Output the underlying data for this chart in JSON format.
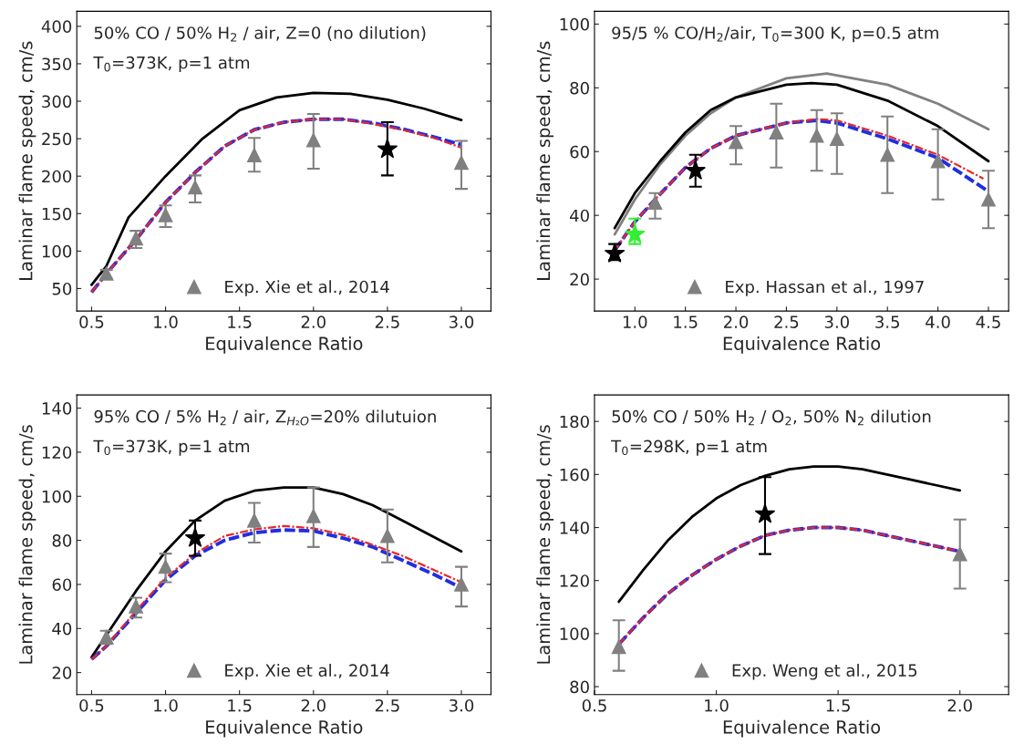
{
  "chart_data": [
    {
      "type": "line",
      "xlabel": "Equivalence Ratio",
      "ylabel": "Laminar flame speed, cm/s",
      "annotations": [
        "50% CO / 50% H$_{2}$ / air, Z=0 (no dilution)",
        "T$_{0}$=373K, p=1 atm"
      ],
      "xlim": [
        0.4,
        3.2
      ],
      "xticks": [
        0.5,
        {
          "value": 1,
          "label": "1.0"
        },
        1.5,
        {
          "value": 2,
          "label": "2.0"
        },
        2.5,
        {
          "value": 3,
          "label": "3.0"
        }
      ],
      "ylim": [
        20,
        420
      ],
      "yticks": [
        50,
        100,
        150,
        200,
        250,
        300,
        350,
        400
      ],
      "legend": "bottom",
      "series": [
        {
          "type": "line",
          "color": "#000000",
          "line_style": "solid",
          "x": [
            0.5,
            0.6,
            0.75,
            1.0,
            1.25,
            1.5,
            1.75,
            2.0,
            2.25,
            2.5,
            2.75,
            3.0
          ],
          "values": [
            55,
            80,
            145,
            200,
            250,
            288,
            305,
            311,
            310,
            302,
            290,
            275
          ]
        },
        {
          "type": "line",
          "color": "#e8262a",
          "line_style": "dashdot",
          "x": [
            0.5,
            0.6,
            0.8,
            1.0,
            1.2,
            1.4,
            1.6,
            1.8,
            2.0,
            2.2,
            2.4,
            2.6,
            2.8,
            3.0
          ],
          "values": [
            45,
            70,
            115,
            165,
            205,
            240,
            262,
            272,
            276,
            276,
            270,
            262,
            252,
            238
          ]
        },
        {
          "type": "line",
          "color": "#1f2fe0",
          "line_style": "dashed",
          "x": [
            0.5,
            0.6,
            0.8,
            1.0,
            1.2,
            1.4,
            1.6,
            1.8,
            2.0,
            2.2,
            2.4,
            2.6,
            2.8,
            3.0
          ],
          "values": [
            45,
            70,
            115,
            165,
            205,
            240,
            262,
            272,
            276,
            276,
            271,
            263,
            253,
            242
          ]
        },
        {
          "type": "scatter",
          "name": "Exp. Xie et al., 2014",
          "color": "#808080",
          "marker": "triangle",
          "x": [
            0.6,
            0.8,
            1.0,
            1.2,
            1.6,
            2.0,
            3.0
          ],
          "values": [
            70,
            117,
            148,
            185,
            228,
            248,
            218
          ],
          "errors": [
            [
              63,
              75
            ],
            [
              104,
              127
            ],
            [
              132,
              161
            ],
            [
              165,
              201
            ],
            [
              206,
              251
            ],
            [
              210,
              283
            ],
            [
              183,
              247
            ]
          ]
        },
        {
          "type": "scatter",
          "color": "#000000",
          "marker": "star",
          "x": [
            2.5
          ],
          "values": [
            236
          ],
          "errors": [
            [
              201,
              272
            ]
          ]
        }
      ]
    },
    {
      "type": "line",
      "xlabel": "Equivalence Ratio",
      "ylabel": "Laminar flame speed, cm/s",
      "annotations": [
        "95/5 % CO/H$_{2}$/air, T$_{0}$=300 K, p=0.5 atm"
      ],
      "xlim": [
        0.6,
        4.7
      ],
      "xticks": [
        {
          "value": 1,
          "label": "1.0"
        },
        1.5,
        {
          "value": 2,
          "label": "2.0"
        },
        2.5,
        {
          "value": 3,
          "label": "3.0"
        },
        3.5,
        {
          "value": 4,
          "label": "4.0"
        },
        4.5
      ],
      "ylim": [
        10,
        104
      ],
      "yticks": [
        20,
        40,
        60,
        80,
        100
      ],
      "legend": "bottom",
      "series": [
        {
          "type": "line",
          "color": "#808080",
          "line_style": "solid",
          "x": [
            0.8,
            1.0,
            1.25,
            1.5,
            1.75,
            2.0,
            2.5,
            2.9,
            3.5,
            4.0,
            4.5
          ],
          "values": [
            34,
            45,
            56,
            65,
            72,
            77,
            83,
            84.5,
            81,
            75,
            67
          ]
        },
        {
          "type": "line",
          "color": "#000000",
          "line_style": "solid",
          "x": [
            0.8,
            1.0,
            1.25,
            1.5,
            1.75,
            2.0,
            2.5,
            2.75,
            3.0,
            3.5,
            4.0,
            4.5
          ],
          "values": [
            36,
            47,
            57,
            66,
            73,
            77,
            81,
            81.5,
            81,
            76,
            68,
            57
          ]
        },
        {
          "type": "line",
          "color": "#e8262a",
          "line_style": "dashdot",
          "x": [
            0.8,
            1.0,
            1.2,
            1.5,
            1.75,
            2.0,
            2.5,
            2.8,
            3.0,
            3.5,
            4.0,
            4.45
          ],
          "values": [
            29,
            38,
            45,
            55,
            61,
            65,
            69,
            70.2,
            69.8,
            65,
            59,
            51.5
          ]
        },
        {
          "type": "line",
          "color": "#1f2fe0",
          "line_style": "dashed",
          "x": [
            0.8,
            1.0,
            1.2,
            1.5,
            1.75,
            2.0,
            2.5,
            2.8,
            3.0,
            3.5,
            4.0,
            4.5
          ],
          "values": [
            29,
            38,
            45,
            55,
            61,
            65,
            69,
            69.8,
            69,
            64,
            58,
            47.5
          ]
        },
        {
          "type": "scatter",
          "name": "Exp. Hassan et al., 1997",
          "color": "#808080",
          "marker": "triangle",
          "x": [
            1.2,
            2.0,
            2.4,
            2.8,
            3.0,
            3.5,
            4.0,
            4.5
          ],
          "values": [
            44,
            63,
            66,
            65,
            64,
            59,
            57,
            45
          ],
          "errors": [
            [
              39,
              47
            ],
            [
              56,
              68
            ],
            [
              55,
              75
            ],
            [
              54,
              73
            ],
            [
              53,
              72
            ],
            [
              47,
              71
            ],
            [
              45,
              67
            ],
            [
              36,
              54
            ]
          ]
        },
        {
          "type": "scatter",
          "color": "#000000",
          "marker": "star",
          "x": [
            0.8,
            1.6
          ],
          "values": [
            28,
            54
          ],
          "errors": [
            [
              26,
              31
            ],
            [
              49,
              59
            ]
          ]
        },
        {
          "type": "scatter",
          "color": "#33ee33",
          "marker": "star",
          "x": [
            1.0
          ],
          "values": [
            34
          ],
          "errors": [
            [
              31,
              39
            ]
          ]
        }
      ]
    },
    {
      "type": "line",
      "xlabel": "Equivalence Ratio",
      "ylabel": "Laminar flame speed, cm/s",
      "annotations": [
        "95% CO / 5% H$_{2}$ / air, Z$_{H₂O}$=20% dilutuion",
        "T$_{0}$=373K, p=1 atm"
      ],
      "xlim": [
        0.4,
        3.2
      ],
      "xticks": [
        0.5,
        {
          "value": 1,
          "label": "1.0"
        },
        1.5,
        {
          "value": 2,
          "label": "2.0"
        },
        2.5,
        {
          "value": 3,
          "label": "3.0"
        }
      ],
      "ylim": [
        10,
        146
      ],
      "yticks": [
        20,
        40,
        60,
        80,
        100,
        120,
        140
      ],
      "legend": "bottom",
      "series": [
        {
          "type": "line",
          "color": "#000000",
          "line_style": "solid",
          "x": [
            0.5,
            0.6,
            0.8,
            1.0,
            1.2,
            1.4,
            1.6,
            1.8,
            2.0,
            2.2,
            2.4,
            2.6,
            2.8,
            3.0
          ],
          "values": [
            27,
            37,
            57,
            75,
            89,
            98,
            102.5,
            104,
            104,
            101,
            96,
            89,
            82,
            75
          ]
        },
        {
          "type": "line",
          "color": "#e8262a",
          "line_style": "dashdot",
          "x": [
            0.5,
            0.6,
            0.8,
            1.0,
            1.2,
            1.4,
            1.6,
            1.8,
            2.0,
            2.2,
            2.4,
            2.6,
            2.8,
            3.0
          ],
          "values": [
            26,
            32,
            48,
            63,
            74,
            82,
            85,
            86.5,
            85.5,
            82.5,
            78,
            73,
            67,
            61
          ]
        },
        {
          "type": "line",
          "color": "#1f2fe0",
          "line_style": "dashed",
          "x": [
            0.5,
            0.6,
            0.8,
            1.0,
            1.2,
            1.4,
            1.6,
            1.8,
            2.0,
            2.2,
            2.4,
            2.6,
            2.8,
            3.0
          ],
          "values": [
            26,
            32,
            47,
            62,
            73,
            80,
            83.5,
            84.7,
            84.3,
            81,
            77,
            71,
            65,
            58.5
          ]
        },
        {
          "type": "scatter",
          "name": "Exp. Xie et al., 2014",
          "color": "#808080",
          "marker": "triangle",
          "x": [
            0.6,
            0.8,
            1.0,
            1.6,
            2.0,
            2.5,
            3.0
          ],
          "values": [
            36,
            50,
            68,
            89,
            91,
            82,
            60
          ],
          "errors": [
            [
              33,
              39
            ],
            [
              45,
              54
            ],
            [
              61,
              74
            ],
            [
              79,
              97
            ],
            [
              77,
              104
            ],
            [
              70,
              94
            ],
            [
              50,
              68
            ]
          ]
        },
        {
          "type": "scatter",
          "color": "#000000",
          "marker": "star",
          "x": [
            1.2
          ],
          "values": [
            81
          ],
          "errors": [
            [
              73,
              89
            ]
          ]
        }
      ]
    },
    {
      "type": "line",
      "xlabel": "Equivalence Ratio",
      "ylabel": "Laminar flame speed, cm/s",
      "annotations": [
        "50% CO / 50% H$_{2}$ / O$_{2}$, 50% N$_{2}$ dilution",
        "T$_{0}$=298K, p=1 atm"
      ],
      "xlim": [
        0.5,
        2.2
      ],
      "xticks": [
        0.5,
        {
          "value": 1,
          "label": "1.0"
        },
        1.5,
        {
          "value": 2,
          "label": "2.0"
        }
      ],
      "ylim": [
        77,
        190
      ],
      "yticks": [
        80,
        100,
        120,
        140,
        160,
        180
      ],
      "legend": "bottom",
      "series": [
        {
          "type": "line",
          "color": "#000000",
          "line_style": "solid",
          "x": [
            0.6,
            0.7,
            0.8,
            0.9,
            1.0,
            1.1,
            1.2,
            1.3,
            1.4,
            1.5,
            1.6,
            1.7,
            1.8,
            1.9,
            2.0
          ],
          "values": [
            112,
            124,
            135,
            144,
            151,
            156,
            159.5,
            162,
            163,
            163,
            162,
            160,
            158,
            156,
            154
          ]
        },
        {
          "type": "line",
          "color": "#e8262a",
          "line_style": "dashdot",
          "x": [
            0.6,
            0.7,
            0.8,
            0.9,
            1.0,
            1.1,
            1.2,
            1.3,
            1.4,
            1.5,
            1.6,
            1.7,
            1.8,
            1.9,
            2.0
          ],
          "values": [
            96,
            106,
            115,
            122,
            128,
            133,
            137,
            139,
            140,
            140,
            139,
            137,
            135,
            133,
            131
          ]
        },
        {
          "type": "line",
          "color": "#1f2fe0",
          "line_style": "dashed",
          "x": [
            0.6,
            0.7,
            0.8,
            0.9,
            1.0,
            1.1,
            1.2,
            1.3,
            1.4,
            1.5,
            1.6,
            1.7,
            1.8,
            1.9,
            2.0
          ],
          "values": [
            96,
            106,
            115,
            122,
            128,
            133,
            137,
            139,
            140,
            140,
            139,
            137,
            135,
            133,
            131
          ]
        },
        {
          "type": "scatter",
          "name": "Exp. Weng et al., 2015",
          "color": "#808080",
          "marker": "triangle",
          "x": [
            0.6,
            2.0
          ],
          "values": [
            95,
            130
          ],
          "errors": [
            [
              86,
              105
            ],
            [
              117,
              143
            ]
          ]
        },
        {
          "type": "scatter",
          "color": "#000000",
          "marker": "star",
          "x": [
            1.2
          ],
          "values": [
            145
          ],
          "errors": [
            [
              130,
              159
            ]
          ]
        }
      ]
    }
  ]
}
